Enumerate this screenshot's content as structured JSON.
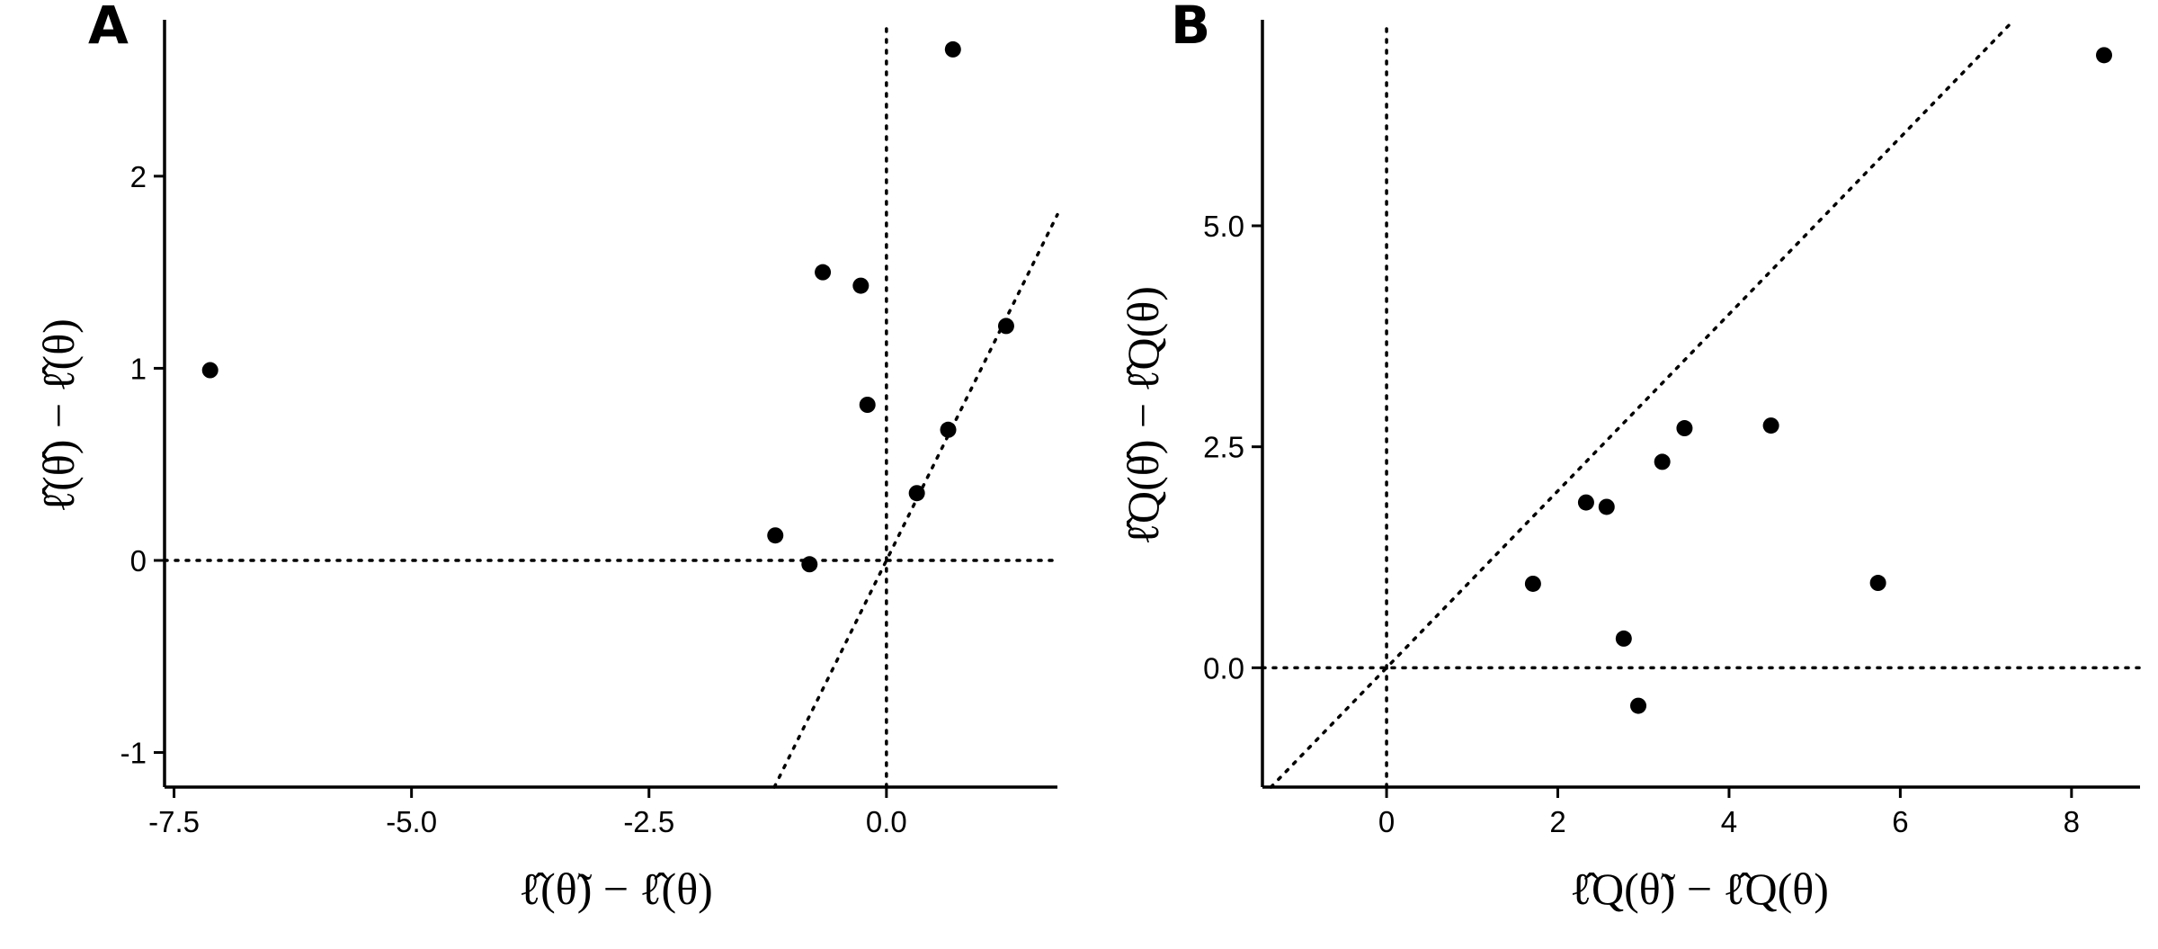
{
  "chart_data": [
    {
      "panel": "A",
      "type": "scatter",
      "xlabel": "ℓ̂(θ̃) − ℓ̂(θ)",
      "ylabel": "ℓ̂(θ̂) − ℓ̂(θ)",
      "xlim": [
        -7.6,
        1.8
      ],
      "ylim": [
        -1.18,
        2.8
      ],
      "xticks": [
        -7.5,
        -5.0,
        -2.5,
        0.0
      ],
      "xtick_labels": [
        "-7.5",
        "-5.0",
        "-2.5",
        "0.0"
      ],
      "yticks": [
        -1,
        0,
        1,
        2
      ],
      "ytick_labels": [
        "-1",
        "0",
        "1",
        "2"
      ],
      "grid": false,
      "reference_lines": [
        {
          "kind": "vline",
          "x": 0
        },
        {
          "kind": "hline",
          "y": 0
        },
        {
          "kind": "abline",
          "intercept": 0,
          "slope": 1
        }
      ],
      "points": [
        {
          "x": -7.12,
          "y": 0.99
        },
        {
          "x": -1.17,
          "y": 0.13
        },
        {
          "x": -0.81,
          "y": -0.02
        },
        {
          "x": -0.67,
          "y": 1.5
        },
        {
          "x": -0.27,
          "y": 1.43
        },
        {
          "x": -0.2,
          "y": 0.81
        },
        {
          "x": 0.32,
          "y": 0.35
        },
        {
          "x": 0.65,
          "y": 0.68
        },
        {
          "x": 0.7,
          "y": 2.66
        },
        {
          "x": 1.26,
          "y": 1.22
        }
      ]
    },
    {
      "panel": "B",
      "type": "scatter",
      "xlabel": "ℓ̂Q(θ̃) − ℓ̂Q(θ)",
      "ylabel": "ℓ̂Q(θ̂) − ℓ̂Q(θ)",
      "xlim": [
        -1.45,
        8.8
      ],
      "ylim": [
        -1.35,
        7.3
      ],
      "xticks": [
        0,
        2,
        4,
        6,
        8
      ],
      "xtick_labels": [
        "0",
        "2",
        "4",
        "6",
        "8"
      ],
      "yticks": [
        0.0,
        2.5,
        5.0
      ],
      "ytick_labels": [
        "0.0",
        "2.5",
        "5.0"
      ],
      "grid": false,
      "reference_lines": [
        {
          "kind": "vline",
          "x": 0
        },
        {
          "kind": "hline",
          "y": 0
        },
        {
          "kind": "abline",
          "intercept": 0,
          "slope": 1
        }
      ],
      "points": [
        {
          "x": 1.71,
          "y": 0.95
        },
        {
          "x": 2.33,
          "y": 1.87
        },
        {
          "x": 2.57,
          "y": 1.82
        },
        {
          "x": 2.77,
          "y": 0.33
        },
        {
          "x": 2.94,
          "y": -0.43
        },
        {
          "x": 3.22,
          "y": 2.33
        },
        {
          "x": 3.48,
          "y": 2.71
        },
        {
          "x": 4.49,
          "y": 2.74
        },
        {
          "x": 5.74,
          "y": 0.96
        },
        {
          "x": 8.38,
          "y": 6.93
        }
      ]
    }
  ]
}
